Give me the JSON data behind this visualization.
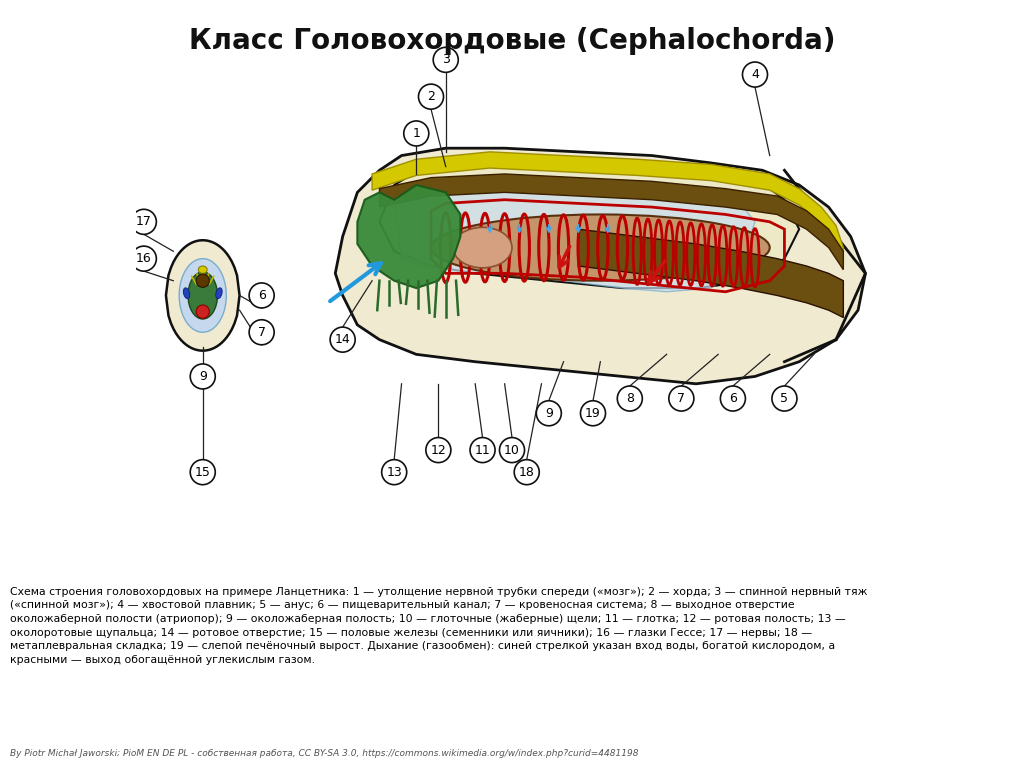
{
  "title": "Класс Головохордовые (Cephalochorda)",
  "title_fontsize": 20,
  "bg_color": "#ffffff",
  "body_color": "#f0ead0",
  "body_outline": "#111111",
  "nerve_color": "#d4c800",
  "notochord_color": "#6b4f10",
  "gill_color": "#bb0000",
  "gut_color": "#7a4510",
  "pharynx_color": "#c4956a",
  "oral_color": "#2a7a2a",
  "atrium_color": "#c8ddf0",
  "gonad_color": "#cc2222",
  "hepatic_color": "#a07830",
  "blood_color": "#cc2222",
  "link_color": "#009999",
  "credit": "By Piotr Michał Jaworski; PioM EN DE PL - собственная работа, CC BY-SA 3.0, https://commons.wikimedia.org/w/index.php?curid=4481198",
  "desc": "Схема строения головохордовых на примере Ланцетника: 1 — утолщение нервной трубки спереди («мозг»); 2 — хорда; 3 — спинной нервный тяж\n(«спинной мозг»); 4 — хвостовой плавник; 5 — анус; 6 — пищеварительный канал; 7 — кровеносная система; 8 — выходное отверстие\nоколожаберной полости (атриопор); 9 — околожаберная полость; 10 — глоточные (жаберные) щели; 11 — глотка; 12 — ротовая полость; 13 —\nоколоротовые щупальца; 14 — ротовое отверстие; 15 — половые железы (семенники или яичники); 16 — глазки Гессе; 17 — нервы; 18 —\nметаплевральная складка; 19 — слепой печёночный вырост. Дыхание (газообмен): синей стрелкой указан вход воды, богатой кислородом, а\nкрасными — выход обогащённой углекислым газом."
}
